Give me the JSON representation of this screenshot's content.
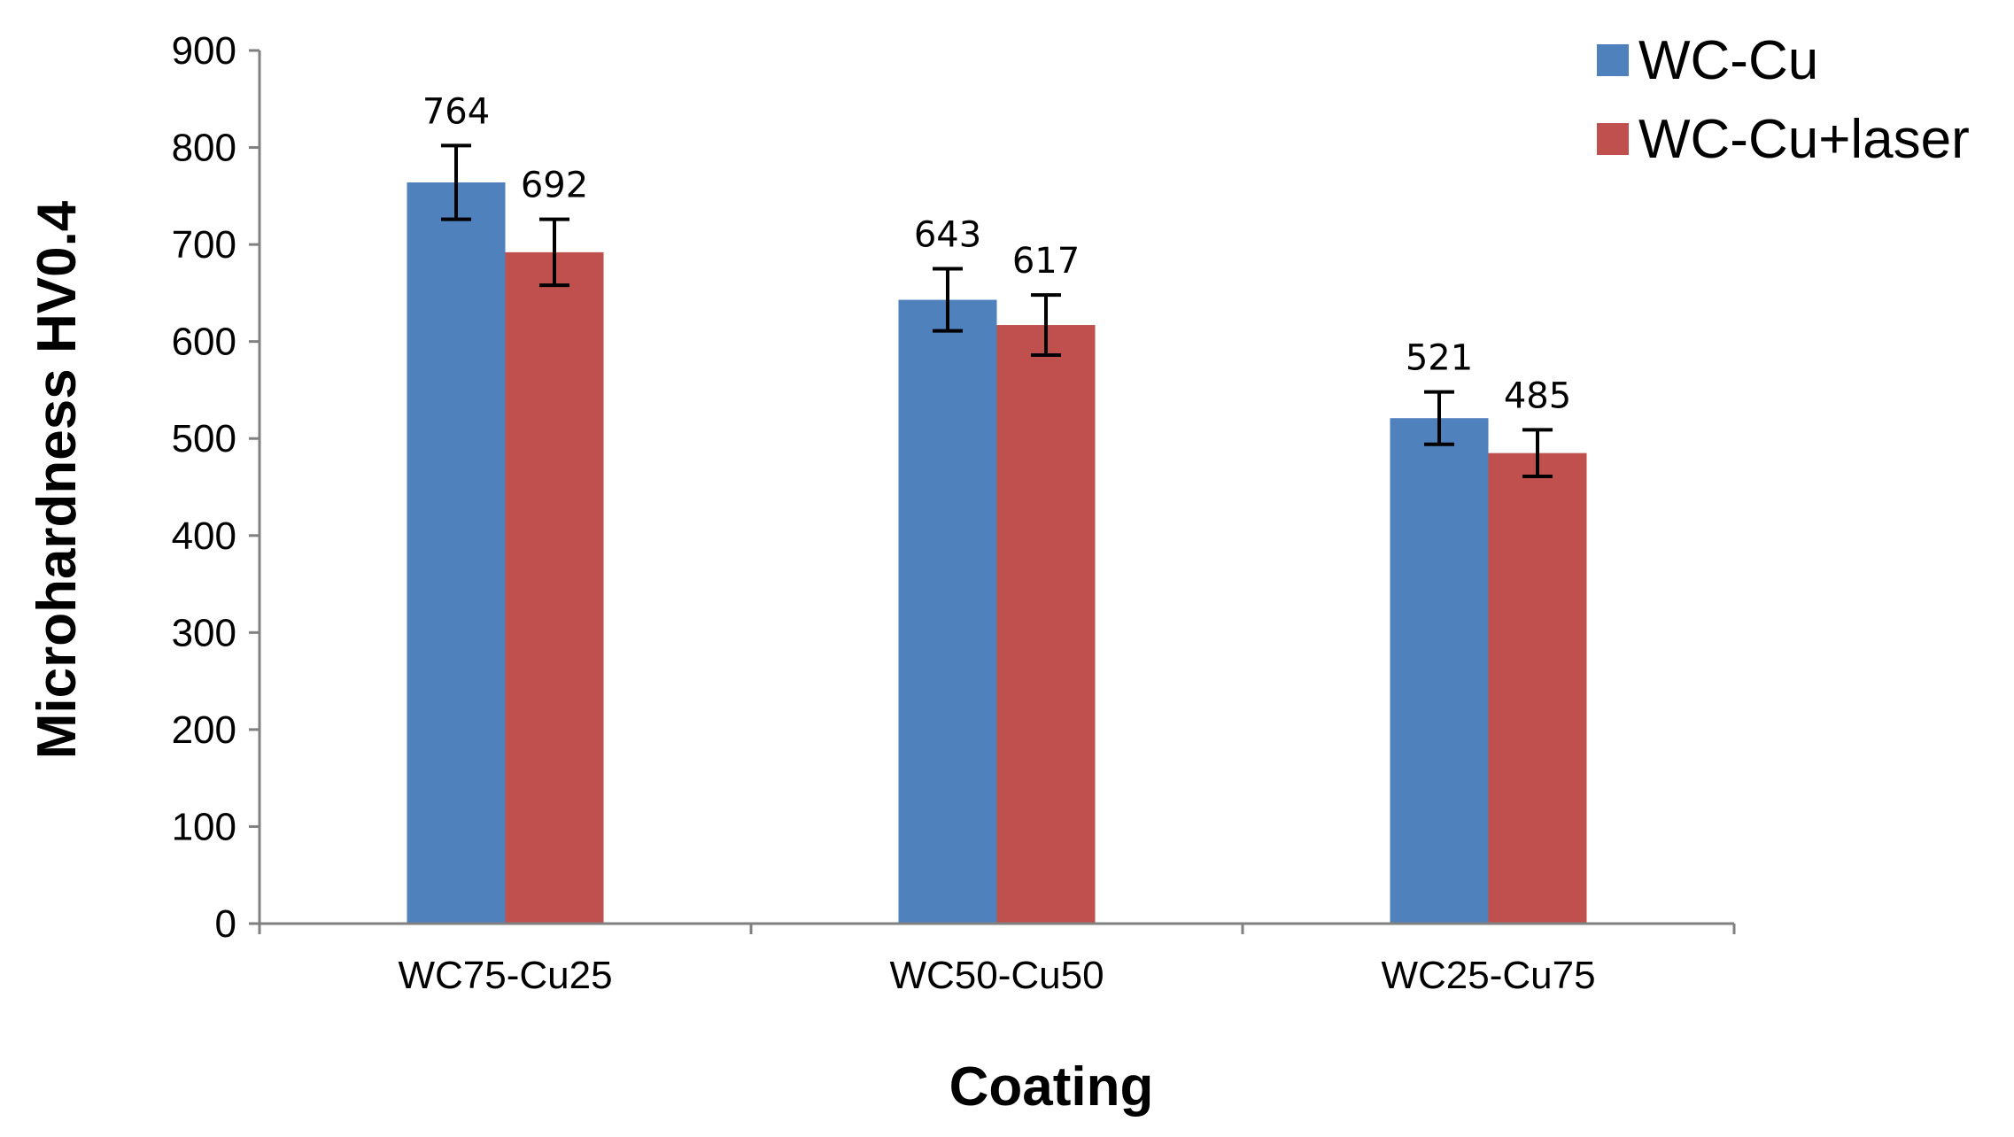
{
  "chart_data": {
    "type": "bar",
    "title": "",
    "xlabel": "Coating",
    "ylabel": "Microhardness HV0.4",
    "ylim": [
      0,
      900
    ],
    "yticks": [
      0,
      100,
      200,
      300,
      400,
      500,
      600,
      700,
      800,
      900
    ],
    "categories": [
      "WC75-Cu25",
      "WC50-Cu50",
      "WC25-Cu75"
    ],
    "series": [
      {
        "name": "WC-Cu",
        "color": "#4f81bd",
        "values": [
          764,
          643,
          521
        ],
        "errors": [
          38,
          32,
          27
        ],
        "labels": [
          "764",
          "643",
          "521"
        ]
      },
      {
        "name": "WC-Cu+laser",
        "color": "#c0504d",
        "values": [
          692,
          617,
          485
        ],
        "errors": [
          34,
          31,
          24
        ],
        "labels": [
          "692",
          "617",
          "485"
        ]
      }
    ],
    "grid": false,
    "legend_position": "top-right",
    "error_bars": true
  }
}
